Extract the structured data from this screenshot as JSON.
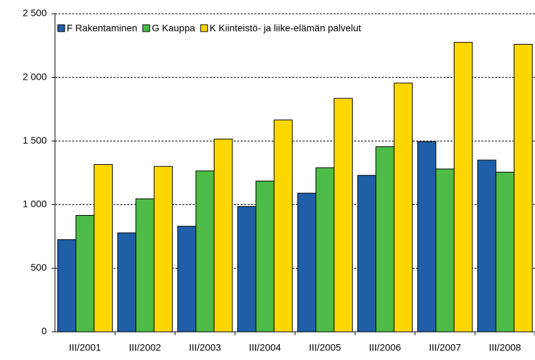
{
  "chart_data": {
    "type": "bar",
    "categories": [
      "III/2001",
      "III/2002",
      "III/2003",
      "III/2004",
      "III/2005",
      "III/2006",
      "III/2007",
      "III/2008"
    ],
    "series": [
      {
        "name": "F Rakentaminen",
        "color": "#1f5fa8",
        "values": [
          725,
          778,
          830,
          985,
          1090,
          1230,
          1495,
          1350
        ]
      },
      {
        "name": "G Kauppa",
        "color": "#4cbb47",
        "values": [
          915,
          1045,
          1265,
          1185,
          1290,
          1455,
          1280,
          1255
        ]
      },
      {
        "name": "K Kiinteistö- ja liike-elämän palvelut",
        "color": "#ffd700",
        "values": [
          1315,
          1300,
          1515,
          1665,
          1835,
          1955,
          2275,
          2260
        ]
      }
    ],
    "ylim": [
      0,
      2500
    ],
    "yticks": [
      0,
      500,
      {
        "value": 1000,
        "label": "1 000"
      },
      {
        "value": 1500,
        "label": "1 500"
      },
      {
        "value": 2000,
        "label": "2 000"
      },
      {
        "value": 2500,
        "label": "2 500"
      }
    ],
    "grid": true,
    "legend": "top-left"
  }
}
